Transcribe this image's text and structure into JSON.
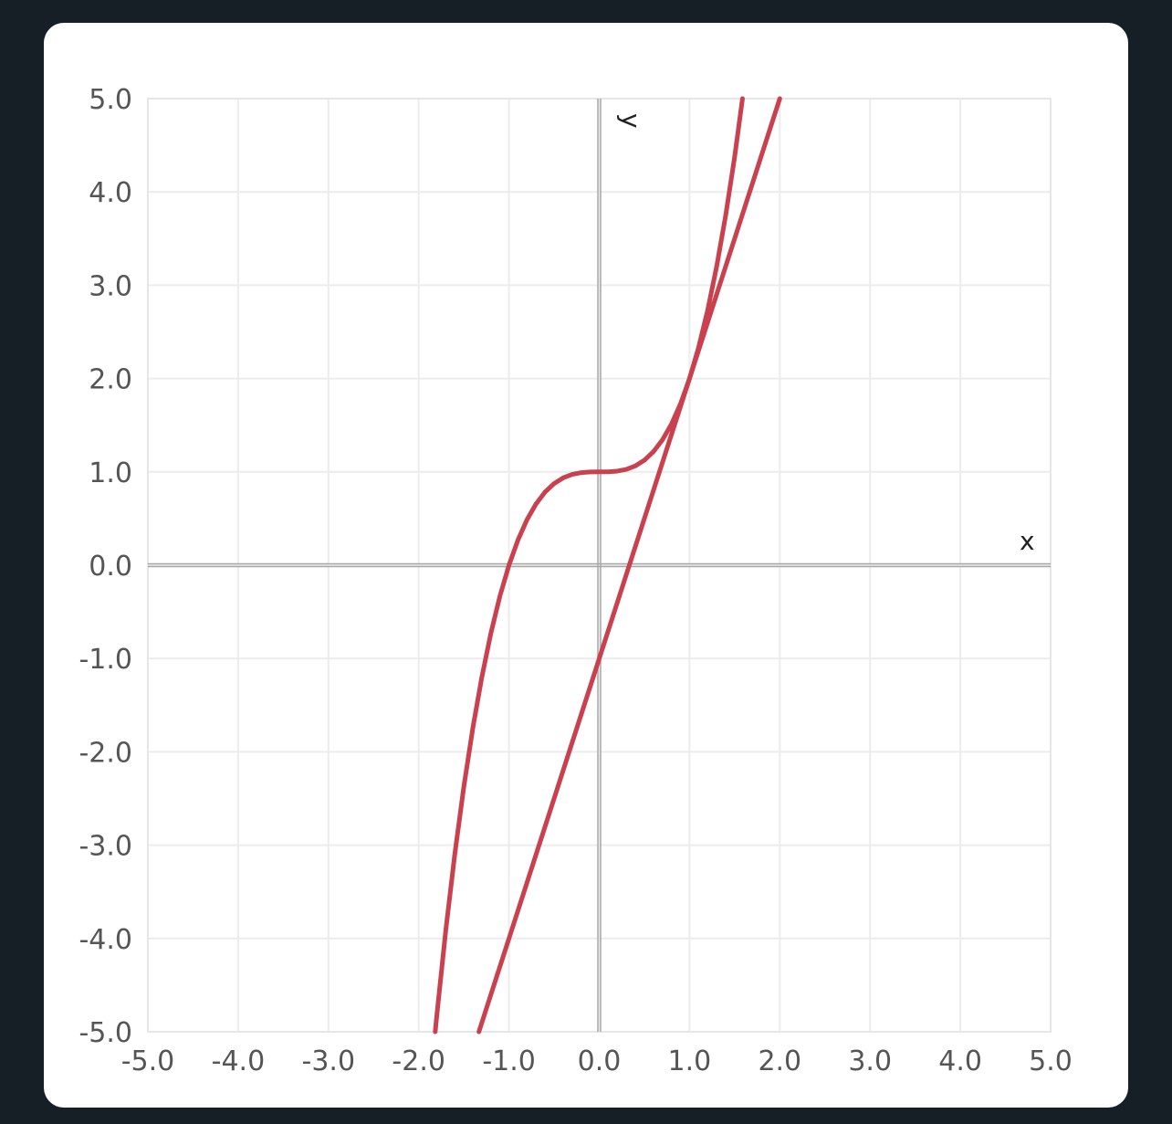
{
  "chart_data": {
    "type": "line",
    "title": "",
    "xlabel": "x",
    "ylabel": "y",
    "xlim": [
      -5,
      5
    ],
    "ylim": [
      -5,
      5
    ],
    "grid": true,
    "xticks": [
      "-5.0",
      "-4.0",
      "-3.0",
      "-2.0",
      "-1.0",
      "0.0",
      "1.0",
      "2.0",
      "3.0",
      "4.0",
      "5.0"
    ],
    "yticks": [
      "5.0",
      "4.0",
      "3.0",
      "2.0",
      "1.0",
      "0.0",
      "-1.0",
      "-2.0",
      "-3.0",
      "-4.0",
      "-5.0"
    ],
    "series": [
      {
        "color": "#c9404e",
        "x": [
          -1.817,
          -1.8,
          -1.7,
          -1.6,
          -1.5,
          -1.4,
          -1.3,
          -1.2,
          -1.1,
          -1.0,
          -0.9,
          -0.8,
          -0.7,
          -0.6,
          -0.5,
          -0.4,
          -0.3,
          -0.2,
          -0.1,
          0,
          0.1,
          0.2,
          0.3,
          0.4,
          0.5,
          0.6,
          0.7,
          0.8,
          0.9,
          1.0,
          1.1,
          1.2,
          1.3,
          1.4,
          1.5,
          1.587
        ],
        "y": [
          -5.0,
          -4.832,
          -3.913,
          -3.096,
          -2.375,
          -1.744,
          -1.197,
          -0.728,
          -0.331,
          0,
          0.271,
          0.488,
          0.657,
          0.784,
          0.875,
          0.936,
          0.973,
          0.992,
          0.999,
          1,
          1.001,
          1.008,
          1.027,
          1.064,
          1.125,
          1.216,
          1.343,
          1.512,
          1.729,
          2,
          2.331,
          2.728,
          3.197,
          3.744,
          4.375,
          5.0
        ]
      },
      {
        "color": "#c9404e",
        "x": [
          -1.333,
          2.0
        ],
        "y": [
          -5.0,
          5.0
        ]
      }
    ]
  }
}
